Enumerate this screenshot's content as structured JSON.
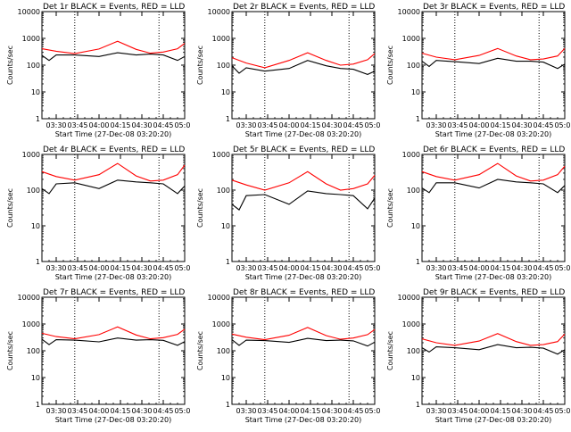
{
  "chart_data": [
    {
      "type": "line",
      "title": "Det 1r BLACK = Events, RED = LLD",
      "xlabel": "Start Time (27-Dec-08 03:20:20)",
      "ylabel": "Counts/sec",
      "yscale": "log",
      "ylim": [
        1,
        10000
      ],
      "x_ticks": [
        "03:30",
        "03:45",
        "04:00",
        "04:15",
        "04:30",
        "04:45",
        "05:00"
      ],
      "y_ticks": [
        "1",
        "10",
        "100",
        "1000",
        "10000"
      ],
      "xlim": [
        "03:20",
        "05:00"
      ],
      "markers_x": [
        "03:43",
        "04:42"
      ],
      "series": [
        {
          "color": "#000000",
          "x": [
            "03:20",
            "03:25",
            "03:30",
            "03:43",
            "04:00",
            "04:13",
            "04:26",
            "04:36",
            "04:45",
            "04:55",
            "05:00"
          ],
          "values": [
            230,
            150,
            240,
            240,
            210,
            290,
            240,
            260,
            240,
            150,
            210
          ]
        },
        {
          "color": "#ff0000",
          "x": [
            "03:20",
            "03:30",
            "03:43",
            "04:00",
            "04:13",
            "04:26",
            "04:36",
            "04:45",
            "04:55",
            "05:00"
          ],
          "values": [
            410,
            330,
            270,
            400,
            780,
            390,
            280,
            310,
            410,
            650
          ]
        }
      ]
    },
    {
      "type": "line",
      "title": "Det 2r BLACK = Events, RED = LLD",
      "xlabel": "Start Time (27-Dec-08 03:20:20)",
      "ylabel": "Counts/sec",
      "yscale": "log",
      "ylim": [
        1,
        10000
      ],
      "x_ticks": [
        "03:30",
        "03:45",
        "04:00",
        "04:15",
        "04:30",
        "04:45",
        "05:00"
      ],
      "y_ticks": [
        "1",
        "10",
        "100",
        "1000",
        "10000"
      ],
      "xlim": [
        "03:20",
        "05:00"
      ],
      "markers_x": [
        "03:43",
        "04:42"
      ],
      "series": [
        {
          "color": "#000000",
          "x": [
            "03:20",
            "03:25",
            "03:30",
            "03:43",
            "04:00",
            "04:13",
            "04:26",
            "04:36",
            "04:45",
            "04:55",
            "05:00"
          ],
          "values": [
            95,
            50,
            80,
            60,
            75,
            150,
            95,
            75,
            70,
            45,
            60
          ]
        },
        {
          "color": "#ff0000",
          "x": [
            "03:20",
            "03:30",
            "03:43",
            "04:00",
            "04:13",
            "04:26",
            "04:36",
            "04:45",
            "04:55",
            "05:00"
          ],
          "values": [
            190,
            120,
            80,
            150,
            290,
            150,
            100,
            110,
            160,
            270
          ]
        }
      ]
    },
    {
      "type": "line",
      "title": "Det 3r BLACK = Events, RED = LLD",
      "xlabel": "Start Time (27-Dec-08 03:20:20)",
      "ylabel": "Counts/sec",
      "yscale": "log",
      "ylim": [
        1,
        10000
      ],
      "x_ticks": [
        "03:30",
        "03:45",
        "04:00",
        "04:15",
        "04:30",
        "04:45",
        "05:00"
      ],
      "y_ticks": [
        "1",
        "10",
        "100",
        "1000",
        "10000"
      ],
      "xlim": [
        "03:20",
        "05:00"
      ],
      "markers_x": [
        "03:43",
        "04:42"
      ],
      "series": [
        {
          "color": "#000000",
          "x": [
            "03:20",
            "03:25",
            "03:30",
            "03:43",
            "04:00",
            "04:13",
            "04:26",
            "04:36",
            "04:45",
            "04:55",
            "05:00"
          ],
          "values": [
            140,
            90,
            150,
            135,
            115,
            180,
            140,
            140,
            130,
            75,
            110
          ]
        },
        {
          "color": "#ff0000",
          "x": [
            "03:20",
            "03:30",
            "03:43",
            "04:00",
            "04:13",
            "04:26",
            "04:36",
            "04:45",
            "04:55",
            "05:00"
          ],
          "values": [
            280,
            200,
            160,
            230,
            420,
            220,
            160,
            170,
            220,
            420
          ]
        }
      ]
    },
    {
      "type": "line",
      "title": "Det 4r BLACK = Events, RED = LLD",
      "xlabel": "Start Time (27-Dec-08 03:20:20)",
      "ylabel": "Counts/sec",
      "yscale": "log",
      "ylim": [
        1,
        1000
      ],
      "x_ticks": [
        "03:30",
        "03:45",
        "04:00",
        "04:15",
        "04:30",
        "04:45",
        "05:00"
      ],
      "y_ticks": [
        "1",
        "10",
        "100",
        "1000"
      ],
      "xlim": [
        "03:20",
        "05:00"
      ],
      "markers_x": [
        "03:43",
        "04:42"
      ],
      "series": [
        {
          "color": "#000000",
          "x": [
            "03:20",
            "03:25",
            "03:30",
            "03:43",
            "04:00",
            "04:13",
            "04:26",
            "04:36",
            "04:45",
            "04:55",
            "05:00"
          ],
          "values": [
            110,
            80,
            150,
            160,
            110,
            190,
            170,
            160,
            150,
            80,
            130
          ]
        },
        {
          "color": "#ff0000",
          "x": [
            "03:20",
            "03:30",
            "03:43",
            "04:00",
            "04:13",
            "04:26",
            "04:36",
            "04:45",
            "04:55",
            "05:00"
          ],
          "values": [
            330,
            240,
            190,
            270,
            560,
            250,
            180,
            190,
            270,
            500
          ]
        }
      ]
    },
    {
      "type": "line",
      "title": "Det 5r BLACK = Events, RED = LLD",
      "xlabel": "Start Time (27-Dec-08 03:20:20)",
      "ylabel": "Counts/sec",
      "yscale": "log",
      "ylim": [
        1,
        1000
      ],
      "x_ticks": [
        "03:30",
        "03:45",
        "04:00",
        "04:15",
        "04:30",
        "04:45",
        "05:00"
      ],
      "y_ticks": [
        "1",
        "10",
        "100",
        "1000"
      ],
      "xlim": [
        "03:20",
        "05:00"
      ],
      "markers_x": [
        "03:43",
        "04:42"
      ],
      "series": [
        {
          "color": "#000000",
          "x": [
            "03:20",
            "03:25",
            "03:30",
            "03:43",
            "04:00",
            "04:13",
            "04:26",
            "04:36",
            "04:45",
            "04:55",
            "05:00"
          ],
          "values": [
            40,
            28,
            70,
            75,
            40,
            95,
            80,
            75,
            70,
            30,
            60
          ]
        },
        {
          "color": "#ff0000",
          "x": [
            "03:20",
            "03:30",
            "03:43",
            "04:00",
            "04:13",
            "04:26",
            "04:36",
            "04:45",
            "04:55",
            "05:00"
          ],
          "values": [
            190,
            140,
            100,
            160,
            330,
            150,
            100,
            110,
            150,
            260
          ]
        }
      ]
    },
    {
      "type": "line",
      "title": "Det 6r BLACK = Events, RED = LLD",
      "xlabel": "Start Time (27-Dec-08 03:20:20)",
      "ylabel": "Counts/sec",
      "yscale": "log",
      "ylim": [
        1,
        1000
      ],
      "x_ticks": [
        "03:30",
        "03:45",
        "04:00",
        "04:15",
        "04:30",
        "04:45",
        "05:00"
      ],
      "y_ticks": [
        "1",
        "10",
        "100",
        "1000"
      ],
      "xlim": [
        "03:20",
        "05:00"
      ],
      "markers_x": [
        "03:43",
        "04:42"
      ],
      "series": [
        {
          "color": "#000000",
          "x": [
            "03:20",
            "03:25",
            "03:30",
            "03:43",
            "04:00",
            "04:13",
            "04:26",
            "04:36",
            "04:45",
            "04:55",
            "05:00"
          ],
          "values": [
            115,
            85,
            160,
            160,
            115,
            200,
            170,
            160,
            150,
            85,
            135
          ]
        },
        {
          "color": "#ff0000",
          "x": [
            "03:20",
            "03:30",
            "03:43",
            "04:00",
            "04:13",
            "04:26",
            "04:36",
            "04:45",
            "04:55",
            "05:00"
          ],
          "values": [
            330,
            240,
            190,
            270,
            560,
            250,
            180,
            190,
            270,
            470
          ]
        }
      ]
    },
    {
      "type": "line",
      "title": "Det 7r BLACK = Events, RED = LLD",
      "xlabel": "Start Time (27-Dec-08 03:20:20)",
      "ylabel": "Counts/sec",
      "yscale": "log",
      "ylim": [
        1,
        10000
      ],
      "x_ticks": [
        "03:30",
        "03:45",
        "04:00",
        "04:15",
        "04:30",
        "04:45",
        "05:00"
      ],
      "y_ticks": [
        "1",
        "10",
        "100",
        "1000",
        "10000"
      ],
      "xlim": [
        "03:20",
        "05:00"
      ],
      "markers_x": [
        "03:43",
        "04:42"
      ],
      "series": [
        {
          "color": "#000000",
          "x": [
            "03:20",
            "03:25",
            "03:30",
            "03:43",
            "04:00",
            "04:13",
            "04:26",
            "04:36",
            "04:45",
            "04:55",
            "05:00"
          ],
          "values": [
            270,
            170,
            260,
            250,
            215,
            300,
            250,
            260,
            245,
            160,
            220
          ]
        },
        {
          "color": "#ff0000",
          "x": [
            "03:20",
            "03:30",
            "03:43",
            "04:00",
            "04:13",
            "04:26",
            "04:36",
            "04:45",
            "04:55",
            "05:00"
          ],
          "values": [
            450,
            340,
            280,
            400,
            780,
            390,
            280,
            310,
            410,
            640
          ]
        }
      ]
    },
    {
      "type": "line",
      "title": "Det 8r BLACK = Events, RED = LLD",
      "xlabel": "Start Time (27-Dec-08 03:20:20)",
      "ylabel": "Counts/sec",
      "yscale": "log",
      "ylim": [
        1,
        10000
      ],
      "x_ticks": [
        "03:30",
        "03:45",
        "04:00",
        "04:15",
        "04:30",
        "04:45",
        "05:00"
      ],
      "y_ticks": [
        "1",
        "10",
        "100",
        "1000",
        "10000"
      ],
      "xlim": [
        "03:20",
        "05:00"
      ],
      "markers_x": [
        "03:43",
        "04:42"
      ],
      "series": [
        {
          "color": "#000000",
          "x": [
            "03:20",
            "03:25",
            "03:30",
            "03:43",
            "04:00",
            "04:13",
            "04:26",
            "04:36",
            "04:45",
            "04:55",
            "05:00"
          ],
          "values": [
            260,
            160,
            250,
            240,
            205,
            290,
            240,
            250,
            235,
            150,
            210
          ]
        },
        {
          "color": "#ff0000",
          "x": [
            "03:20",
            "03:30",
            "03:43",
            "04:00",
            "04:13",
            "04:26",
            "04:36",
            "04:45",
            "04:55",
            "05:00"
          ],
          "values": [
            420,
            320,
            260,
            380,
            740,
            370,
            270,
            300,
            400,
            620
          ]
        }
      ]
    },
    {
      "type": "line",
      "title": "Det 9r BLACK = Events, RED = LLD",
      "xlabel": "Start Time (27-Dec-08 03:20:20)",
      "ylabel": "Counts/sec",
      "yscale": "log",
      "ylim": [
        1,
        10000
      ],
      "x_ticks": [
        "03:30",
        "03:45",
        "04:00",
        "04:15",
        "04:30",
        "04:45",
        "05:00"
      ],
      "y_ticks": [
        "1",
        "10",
        "100",
        "1000",
        "10000"
      ],
      "xlim": [
        "03:20",
        "05:00"
      ],
      "markers_x": [
        "03:43",
        "04:42"
      ],
      "series": [
        {
          "color": "#000000",
          "x": [
            "03:20",
            "03:25",
            "03:30",
            "03:43",
            "04:00",
            "04:13",
            "04:26",
            "04:36",
            "04:45",
            "04:55",
            "05:00"
          ],
          "values": [
            130,
            90,
            140,
            130,
            110,
            170,
            130,
            135,
            125,
            75,
            110
          ]
        },
        {
          "color": "#ff0000",
          "x": [
            "03:20",
            "03:30",
            "03:43",
            "04:00",
            "04:13",
            "04:26",
            "04:36",
            "04:45",
            "04:55",
            "05:00"
          ],
          "values": [
            280,
            200,
            160,
            230,
            440,
            220,
            160,
            170,
            220,
            420
          ]
        }
      ]
    }
  ]
}
